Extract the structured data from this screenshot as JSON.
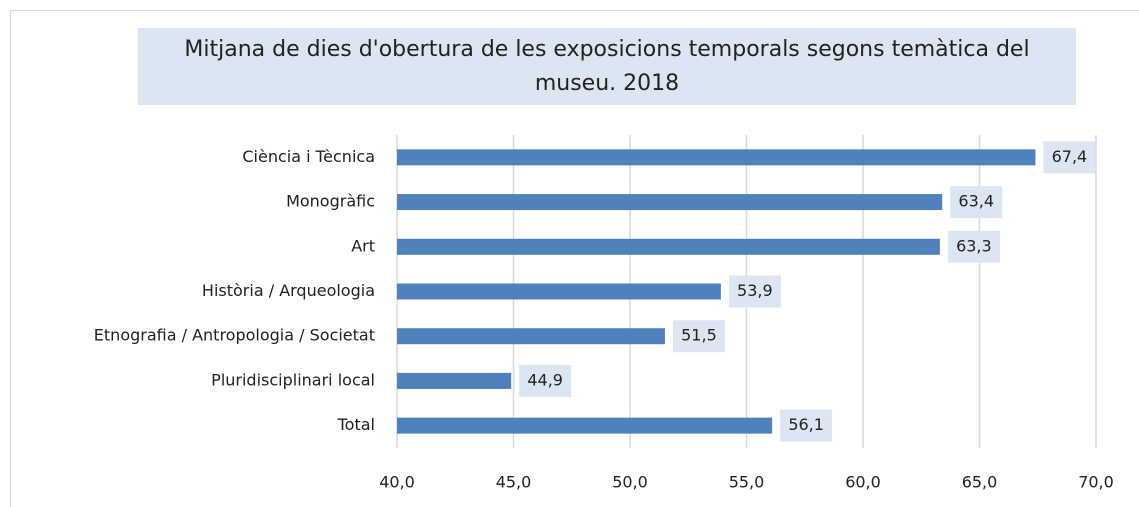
{
  "chart_data": {
    "type": "bar",
    "orientation": "horizontal",
    "title": "Mitjana de dies d'obertura de les exposicions temporals segons temàtica del museu. 2018",
    "categories": [
      "Ciència i Tècnica",
      "Monogràfic",
      "Art",
      "Història / Arqueologia",
      "Etnografia / Antropologia / Societat",
      "Pluridisciplinari local",
      "Total"
    ],
    "values": [
      67.4,
      63.4,
      63.3,
      53.9,
      51.5,
      44.9,
      56.1
    ],
    "value_labels": [
      "67,4",
      "63,4",
      "63,3",
      "53,9",
      "51,5",
      "44,9",
      "56,1"
    ],
    "color": "#4f81bd",
    "xlim": [
      40,
      70
    ],
    "xticks": [
      {
        "value": 40,
        "label": "40,0"
      },
      {
        "value": 45,
        "label": "45,0"
      },
      {
        "value": 50,
        "label": "50,0"
      },
      {
        "value": 55,
        "label": "55,0"
      },
      {
        "value": 60,
        "label": "60,0"
      },
      {
        "value": 65,
        "label": "65,0"
      },
      {
        "value": 70,
        "label": "70,0"
      }
    ],
    "grid": true
  }
}
